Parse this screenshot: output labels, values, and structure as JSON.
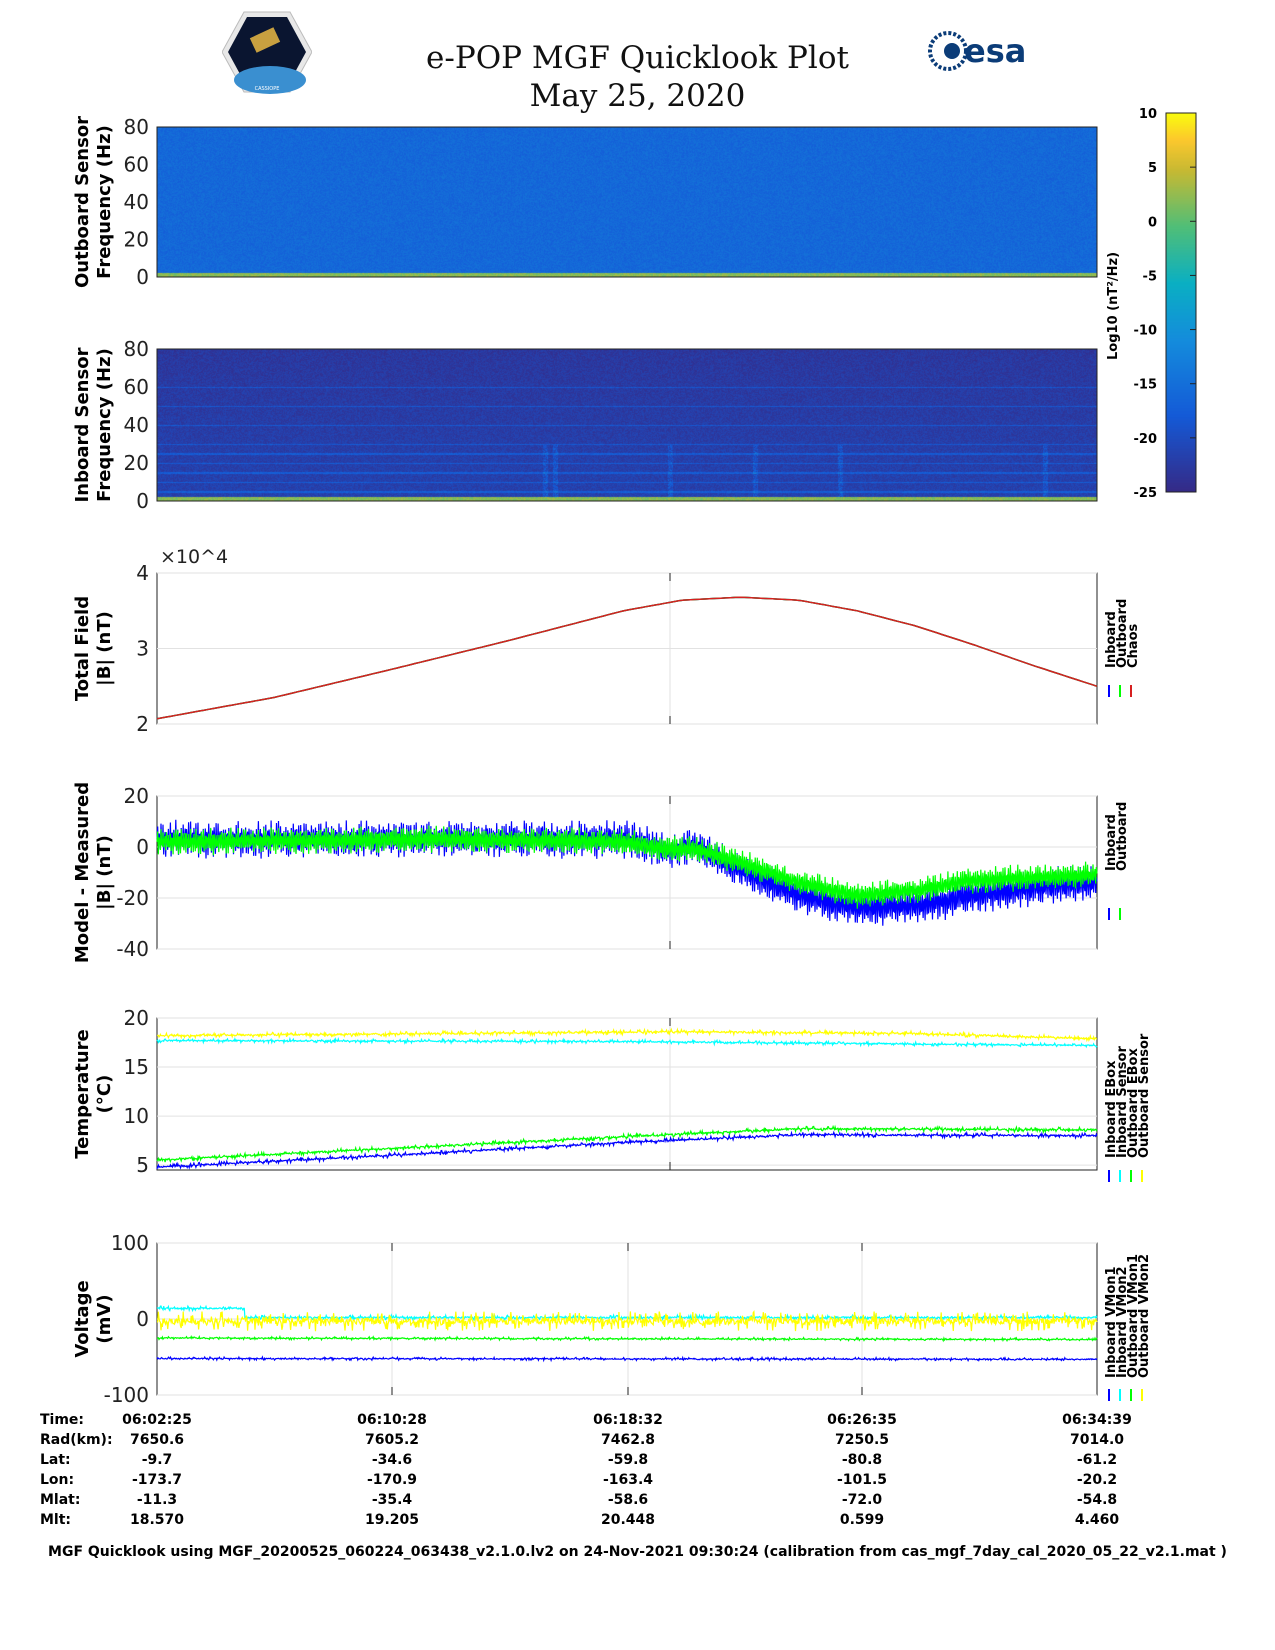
{
  "header": {
    "title": "e-POP MGF Quicklook Plot",
    "date": "May 25, 2020",
    "logo_left_text": "CASSIOPE",
    "logo_right_text": "esa"
  },
  "colorbar": {
    "label": "Log10 (nT²/Hz)",
    "ticks": [
      10,
      5,
      0,
      -5,
      -10,
      -15,
      -20,
      -25
    ],
    "range": [
      -25,
      10
    ]
  },
  "chart_data": [
    {
      "type": "heatmap",
      "name": "outboard-spectrogram",
      "ylabel": [
        "Outboard Sensor",
        "Frequency (Hz)"
      ],
      "ylim": [
        0,
        80
      ],
      "yticks": [
        0,
        20,
        40,
        60,
        80
      ],
      "background_level": -16,
      "low_freq_level": 2
    },
    {
      "type": "heatmap",
      "name": "inboard-spectrogram",
      "ylabel": [
        "Inboard Sensor",
        "Frequency (Hz)"
      ],
      "ylim": [
        0,
        80
      ],
      "yticks": [
        0,
        20,
        40,
        60,
        80
      ],
      "background_level": -23,
      "low_freq_level": 2,
      "harmonic_lines_hz": [
        5,
        10,
        15,
        20,
        25,
        30,
        40,
        50,
        60
      ]
    },
    {
      "type": "line",
      "name": "total-field",
      "ylabel": [
        "Total Field",
        "|B| (nT)"
      ],
      "ylim": [
        2,
        4
      ],
      "yticks": [
        2,
        3,
        4
      ],
      "exponent": "×10^4",
      "xlim_min": [
        0,
        32.23
      ],
      "legend": [
        "Inboard",
        "Outboard",
        "Chaos"
      ],
      "series": [
        {
          "name": "Inboard",
          "color": "#0000ff",
          "points": [
            [
              0,
              2.07
            ],
            [
              4,
              2.35
            ],
            [
              8,
              2.72
            ],
            [
              12,
              3.1
            ],
            [
              16,
              3.5
            ],
            [
              18,
              3.64
            ],
            [
              20,
              3.68
            ],
            [
              22,
              3.64
            ],
            [
              24,
              3.5
            ],
            [
              26,
              3.3
            ],
            [
              28,
              3.05
            ],
            [
              30,
              2.78
            ],
            [
              32.23,
              2.5
            ]
          ],
          "noise": 0
        },
        {
          "name": "Outboard",
          "color": "#00ff00",
          "points": [
            [
              0,
              2.07
            ],
            [
              4,
              2.35
            ],
            [
              8,
              2.72
            ],
            [
              12,
              3.1
            ],
            [
              16,
              3.5
            ],
            [
              18,
              3.64
            ],
            [
              20,
              3.68
            ],
            [
              22,
              3.64
            ],
            [
              24,
              3.5
            ],
            [
              26,
              3.3
            ],
            [
              28,
              3.05
            ],
            [
              30,
              2.78
            ],
            [
              32.23,
              2.5
            ]
          ],
          "noise": 0
        },
        {
          "name": "Chaos",
          "color": "#d62020",
          "points": [
            [
              0,
              2.07
            ],
            [
              4,
              2.35
            ],
            [
              8,
              2.72
            ],
            [
              12,
              3.1
            ],
            [
              16,
              3.5
            ],
            [
              18,
              3.64
            ],
            [
              20,
              3.68
            ],
            [
              22,
              3.64
            ],
            [
              24,
              3.5
            ],
            [
              26,
              3.3
            ],
            [
              28,
              3.05
            ],
            [
              30,
              2.78
            ],
            [
              32.23,
              2.5
            ]
          ],
          "noise": 0
        }
      ]
    },
    {
      "type": "line",
      "name": "model-minus-measured",
      "ylabel": [
        "Model - Measured",
        "|B| (nT)"
      ],
      "ylim": [
        -40,
        20
      ],
      "yticks": [
        -40,
        -20,
        0,
        20
      ],
      "xlim_min": [
        0,
        32.23
      ],
      "legend": [
        "Inboard",
        "Outboard"
      ],
      "series": [
        {
          "name": "Inboard",
          "color": "#0000ff",
          "points": [
            [
              0,
              3
            ],
            [
              10,
              3
            ],
            [
              16,
              3
            ],
            [
              17.5,
              -1
            ],
            [
              18.5,
              0
            ],
            [
              20,
              -9
            ],
            [
              22,
              -19
            ],
            [
              24,
              -24
            ],
            [
              26,
              -23
            ],
            [
              28,
              -19
            ],
            [
              30,
              -16
            ],
            [
              32.23,
              -14
            ]
          ],
          "noise": 7
        },
        {
          "name": "Outboard",
          "color": "#00ff00",
          "points": [
            [
              0,
              2
            ],
            [
              10,
              3
            ],
            [
              16,
              2
            ],
            [
              17.5,
              -1
            ],
            [
              18.5,
              -1
            ],
            [
              20,
              -6
            ],
            [
              22,
              -14
            ],
            [
              24,
              -19
            ],
            [
              26,
              -17
            ],
            [
              28,
              -13
            ],
            [
              30,
              -12
            ],
            [
              32.23,
              -11
            ]
          ],
          "noise": 5
        }
      ]
    },
    {
      "type": "line",
      "name": "temperature",
      "ylabel": [
        "Temperature",
        "(°C)"
      ],
      "ylim": [
        4.5,
        20
      ],
      "yticks": [
        5,
        10,
        15,
        20
      ],
      "xlim_min": [
        0,
        32.23
      ],
      "legend": [
        "Inboard EBox",
        "Inboard Sensor",
        "Outboard EBox",
        "Outboard Sensor"
      ],
      "series": [
        {
          "name": "Inboard EBox",
          "color": "#0000ff",
          "points": [
            [
              0,
              4.8
            ],
            [
              8,
              6.0
            ],
            [
              16,
              7.3
            ],
            [
              22,
              8.1
            ],
            [
              32.23,
              8.0
            ]
          ],
          "noise": 0.25
        },
        {
          "name": "Inboard Sensor",
          "color": "#00ffff",
          "points": [
            [
              0,
              17.7
            ],
            [
              16,
              17.6
            ],
            [
              24,
              17.4
            ],
            [
              32.23,
              17.2
            ]
          ],
          "noise": 0.2
        },
        {
          "name": "Outboard EBox",
          "color": "#00ff00",
          "points": [
            [
              0,
              5.5
            ],
            [
              8,
              6.7
            ],
            [
              16,
              7.9
            ],
            [
              22,
              8.7
            ],
            [
              32.23,
              8.6
            ]
          ],
          "noise": 0.25
        },
        {
          "name": "Outboard Sensor",
          "color": "#ffff00",
          "points": [
            [
              0,
              18.2
            ],
            [
              18,
              18.6
            ],
            [
              26,
              18.4
            ],
            [
              32.23,
              17.9
            ]
          ],
          "noise": 0.25
        }
      ]
    },
    {
      "type": "line",
      "name": "voltage",
      "ylabel": [
        "Voltage",
        "(mV)"
      ],
      "ylim": [
        -100,
        100
      ],
      "yticks": [
        -100,
        0,
        100
      ],
      "xlim_min": [
        0,
        32.23
      ],
      "legend": [
        "Inboard VMon1",
        "Inboard VMon2",
        "Outboard VMon1",
        "Outboard VMon2"
      ],
      "series": [
        {
          "name": "Inboard VMon1",
          "color": "#0000ff",
          "points": [
            [
              0,
              -52
            ],
            [
              32.23,
              -53
            ]
          ],
          "noise": 2
        },
        {
          "name": "Inboard VMon2",
          "color": "#00ffff",
          "points": [
            [
              0,
              14
            ],
            [
              3,
              14
            ],
            [
              3.01,
              2
            ],
            [
              32.23,
              2
            ]
          ],
          "noise": 3
        },
        {
          "name": "Outboard VMon1",
          "color": "#00ff00",
          "points": [
            [
              0,
              -25
            ],
            [
              32.23,
              -27
            ]
          ],
          "noise": 2
        },
        {
          "name": "Outboard VMon2",
          "color": "#ffff00",
          "points": [
            [
              0,
              -3
            ],
            [
              32.23,
              -3
            ]
          ],
          "noise": 13
        }
      ]
    }
  ],
  "ephemeris": {
    "row_labels": [
      "Time:",
      "Rad(km):",
      "Lat:",
      "Lon:",
      "Mlat:",
      "Mlt:"
    ],
    "columns": [
      [
        "06:02:25",
        "7650.6",
        "-9.7",
        "-173.7",
        "-11.3",
        "18.570"
      ],
      [
        "06:10:28",
        "7605.2",
        "-34.6",
        "-170.9",
        "-35.4",
        "19.205"
      ],
      [
        "06:18:32",
        "7462.8",
        "-59.8",
        "-163.4",
        "-58.6",
        "20.448"
      ],
      [
        "06:26:35",
        "7250.5",
        "-80.8",
        "-101.5",
        "-72.0",
        "0.599"
      ],
      [
        "06:34:39",
        "7014.0",
        "-61.2",
        "-20.2",
        "-54.8",
        "4.460"
      ]
    ]
  },
  "footer": "MGF Quicklook using MGF_20200525_060224_063438_v2.1.0.lv2 on 24-Nov-2021 09:30:24 (calibration from cas_mgf_7day_cal_2020_05_22_v2.1.mat )"
}
